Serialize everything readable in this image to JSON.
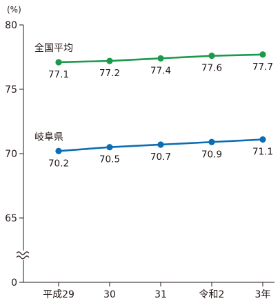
{
  "chart_data": {
    "type": "line",
    "y_unit": "(%)",
    "categories": [
      "平成29",
      "30",
      "31",
      "令和2",
      "3年"
    ],
    "y_ticks": [
      80,
      75,
      70,
      65,
      0
    ],
    "ylim": [
      65,
      80
    ],
    "axis_break": true,
    "grid": false,
    "legend": "labels-above-lines",
    "series": [
      {
        "name": "全国平均",
        "values": [
          77.1,
          77.2,
          77.4,
          77.6,
          77.7
        ],
        "color": "#1a9a4a"
      },
      {
        "name": "岐阜県",
        "values": [
          70.2,
          70.5,
          70.7,
          70.9,
          71.1
        ],
        "color": "#0b6db3"
      }
    ]
  }
}
